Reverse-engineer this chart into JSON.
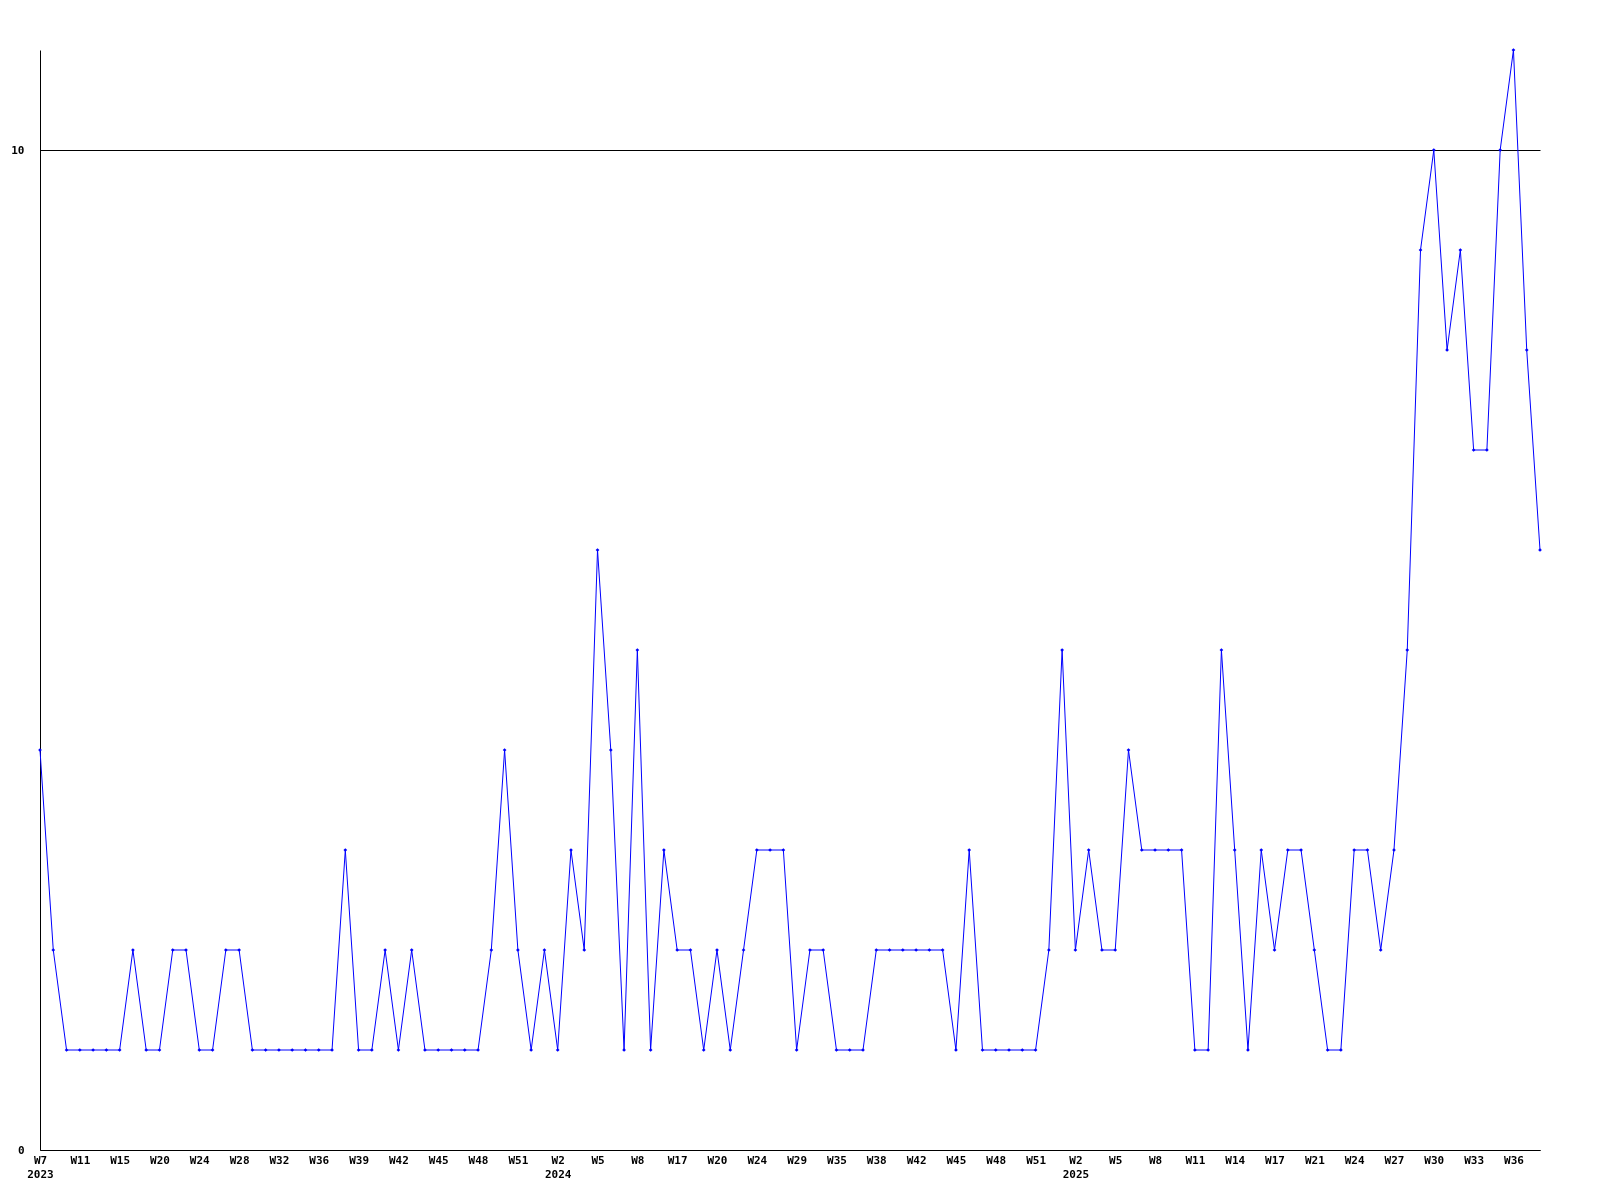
{
  "chart_data": {
    "type": "line",
    "categories": [
      "W7\n2023",
      null,
      null,
      "W11",
      null,
      null,
      "W15",
      null,
      null,
      "W20",
      null,
      null,
      "W24",
      null,
      null,
      "W28",
      null,
      null,
      "W32",
      null,
      null,
      "W36",
      null,
      null,
      "W39",
      null,
      null,
      "W42",
      null,
      null,
      "W45",
      null,
      null,
      "W48",
      null,
      null,
      "W51",
      null,
      null,
      "W2\n2024",
      null,
      null,
      "W5",
      null,
      null,
      "W8",
      null,
      null,
      "W17",
      null,
      null,
      "W20",
      null,
      null,
      "W24",
      null,
      null,
      "W29",
      null,
      null,
      "W35",
      null,
      null,
      "W38",
      null,
      null,
      "W42",
      null,
      null,
      "W45",
      null,
      null,
      "W48",
      null,
      null,
      "W51",
      null,
      null,
      "W2\n2025",
      null,
      null,
      "W5",
      null,
      null,
      "W8",
      null,
      null,
      "W11",
      null,
      null,
      "W14",
      null,
      null,
      "W17",
      null,
      null,
      "W21",
      null,
      null,
      "W24",
      null,
      null,
      "W27",
      null,
      null,
      "W30",
      null,
      null,
      "W33",
      null,
      null,
      "W36",
      null,
      null
    ],
    "series": [
      {
        "color": "#0000ff",
        "values": [
          4,
          2,
          1,
          1,
          1,
          1,
          1,
          2,
          1,
          1,
          2,
          2,
          1,
          1,
          2,
          2,
          1,
          1,
          1,
          1,
          1,
          1,
          1,
          3,
          1,
          1,
          2,
          1,
          2,
          1,
          1,
          1,
          1,
          1,
          2,
          4,
          2,
          1,
          2,
          1,
          3,
          2,
          6,
          4,
          1,
          5,
          1,
          3,
          2,
          2,
          1,
          2,
          1,
          2,
          3,
          3,
          3,
          1,
          2,
          2,
          1,
          1,
          1,
          2,
          2,
          2,
          2,
          2,
          2,
          1,
          3,
          1,
          1,
          1,
          1,
          1,
          2,
          5,
          2,
          3,
          2,
          2,
          4,
          3,
          3,
          3,
          3,
          1,
          1,
          5,
          3,
          1,
          3,
          2,
          3,
          3,
          2,
          1,
          1,
          3,
          3,
          2,
          3,
          5,
          9,
          10,
          8,
          9,
          7,
          7,
          10,
          11,
          8,
          6
        ]
      }
    ],
    "ylim": [
      0,
      11
    ],
    "yticks": [
      0,
      10
    ],
    "grid": "y",
    "marker": "diamond",
    "line_style": "solid"
  }
}
